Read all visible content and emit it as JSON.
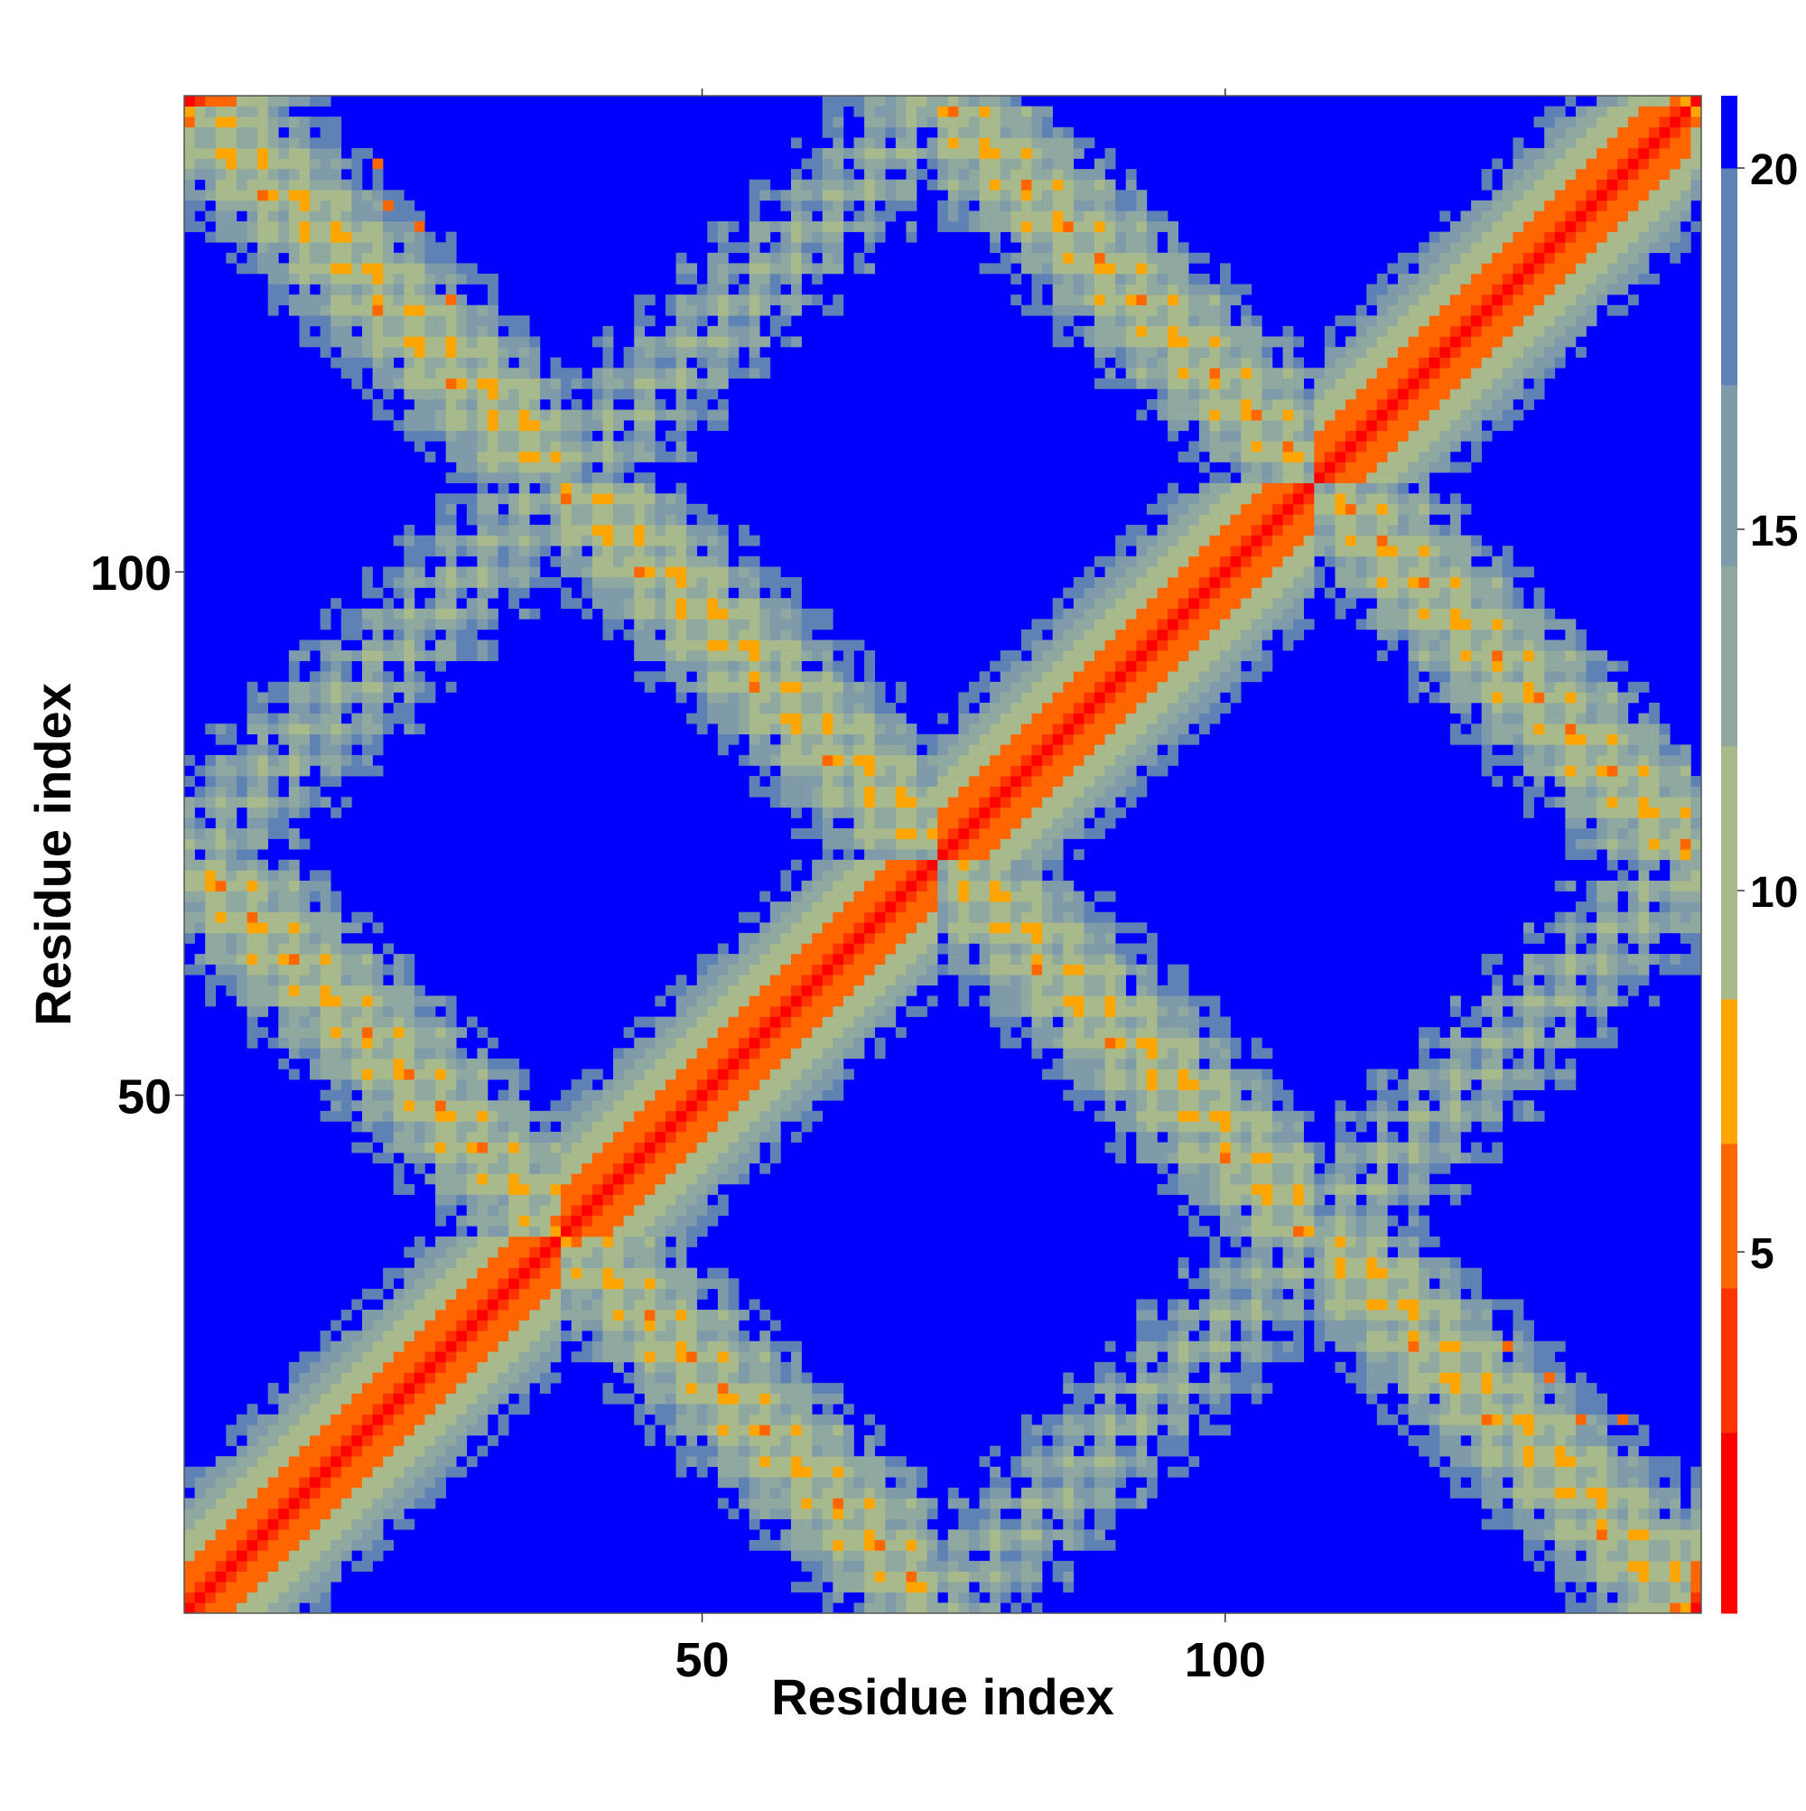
{
  "chart_data": {
    "type": "heatmap",
    "title": "",
    "xlabel": "Residue index",
    "ylabel": "Residue index",
    "n_residues": 145,
    "xlim": [
      1,
      145
    ],
    "ylim": [
      1,
      145
    ],
    "x_ticks": [
      50,
      100
    ],
    "y_ticks": [
      50,
      100
    ],
    "colorbar": {
      "range": [
        0,
        21
      ],
      "ticks": [
        5,
        10,
        15,
        20
      ],
      "color_levels": [
        {
          "from": 0,
          "to": 2.5,
          "color": "#ff0000"
        },
        {
          "from": 2.5,
          "to": 4.5,
          "color": "#ff3300"
        },
        {
          "from": 4.5,
          "to": 6.5,
          "color": "#ff6600"
        },
        {
          "from": 6.5,
          "to": 8.5,
          "color": "#ffa500"
        },
        {
          "from": 8.5,
          "to": 12,
          "color": "#a8b98c"
        },
        {
          "from": 12,
          "to": 14.5,
          "color": "#8fa8a0"
        },
        {
          "from": 14.5,
          "to": 17,
          "color": "#7f9aa8"
        },
        {
          "from": 17,
          "to": 20,
          "color": "#5f82b4"
        },
        {
          "from": 20,
          "to": 21,
          "color": "#0000ff"
        }
      ]
    },
    "background_color": "#0000ff",
    "symmetric": true,
    "features": [
      {
        "kind": "diagonal",
        "description": "self-contact band along i=j, distance ~0-4"
      },
      {
        "kind": "helix-band",
        "i_range": [
          36,
          52
        ],
        "j_range": [
          36,
          52
        ],
        "note": "antiparallel contact near (42,44)"
      },
      {
        "kind": "helix-band",
        "i_range": [
          66,
          86
        ],
        "j_range": [
          66,
          86
        ],
        "note": "antiparallel contact near (74,76)"
      },
      {
        "kind": "contact-patch",
        "center": [
          41,
          82
        ],
        "note": "orange streak"
      },
      {
        "kind": "contact-patch",
        "center": [
          80,
          55
        ],
        "note": "orange streak"
      },
      {
        "kind": "contact-patch",
        "center": [
          25,
          50
        ],
        "note": "orange dots"
      },
      {
        "kind": "isolated-contacts",
        "points": [
          [
            19,
            139
          ],
          [
            20,
            135
          ],
          [
            23,
            133
          ],
          [
            26,
            126
          ],
          [
            127,
            26
          ],
          [
            131,
            23
          ],
          [
            134,
            19
          ],
          [
            138,
            19
          ]
        ]
      }
    ]
  }
}
